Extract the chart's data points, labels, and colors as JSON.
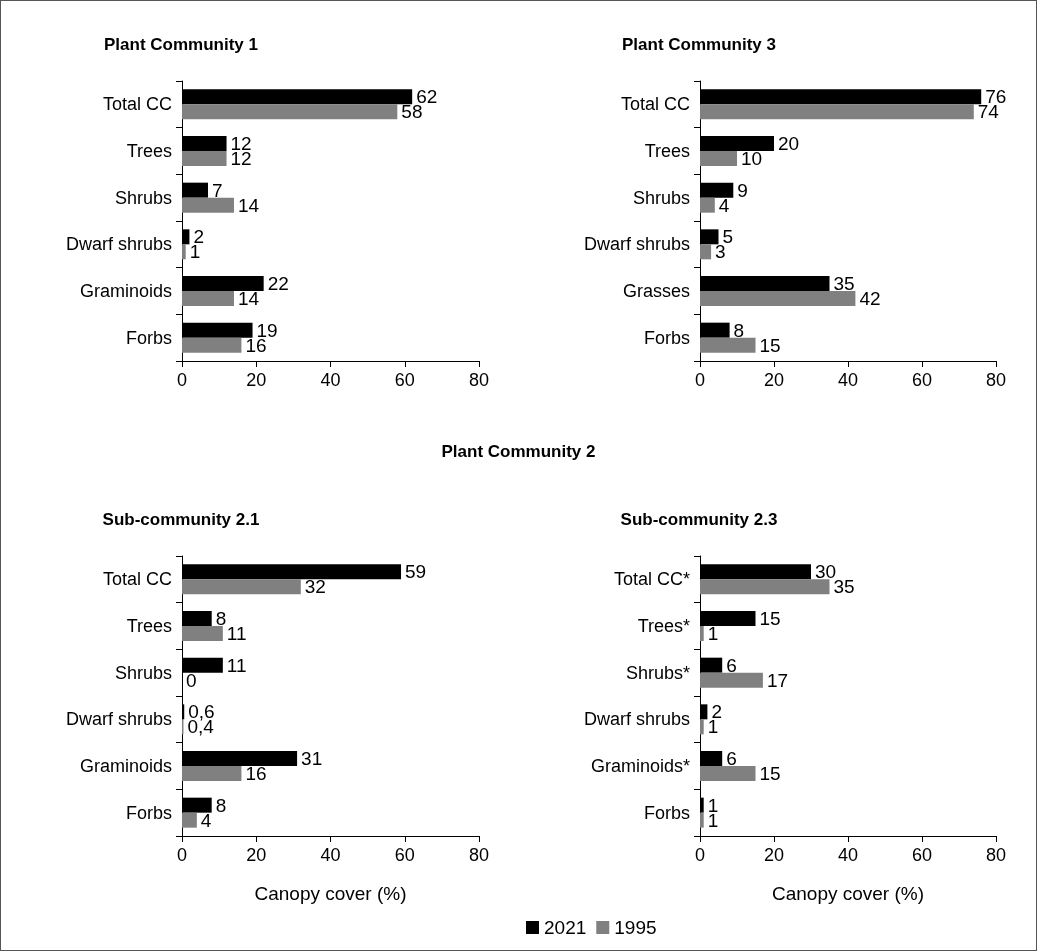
{
  "chart_data": [
    {
      "type": "bar",
      "orientation": "horizontal",
      "title": "Plant Community 1",
      "categories": [
        "Total CC",
        "Trees",
        "Shrubs",
        "Dwarf shrubs",
        "Graminoids",
        "Forbs"
      ],
      "series": [
        {
          "color": "#000000",
          "values": [
            62,
            12,
            7,
            2,
            22,
            19
          ]
        },
        {
          "color": "#808080",
          "values": [
            58,
            12,
            14,
            1,
            14,
            16
          ]
        }
      ],
      "xlim": [
        0,
        80
      ],
      "xticks": [
        0,
        20,
        40,
        60,
        80
      ],
      "data_labels": true
    },
    {
      "type": "bar",
      "orientation": "horizontal",
      "title": "Plant Community 3",
      "categories": [
        "Total CC",
        "Trees",
        "Shrubs",
        "Dwarf shrubs",
        "Grasses",
        "Forbs"
      ],
      "series": [
        {
          "color": "#000000",
          "values": [
            76,
            20,
            9,
            5,
            35,
            8
          ]
        },
        {
          "color": "#808080",
          "values": [
            74,
            10,
            4,
            3,
            42,
            15
          ]
        }
      ],
      "xlim": [
        0,
        80
      ],
      "xticks": [
        0,
        20,
        40,
        60,
        80
      ],
      "data_labels": true
    },
    {
      "type": "other",
      "title": "Plant Community 2"
    },
    {
      "type": "bar",
      "orientation": "horizontal",
      "title": "Sub-community 2.1",
      "xlabel": "Canopy cover (%)",
      "categories": [
        "Total CC",
        "Trees",
        "Shrubs",
        "Dwarf shrubs",
        "Graminoids",
        "Forbs"
      ],
      "series": [
        {
          "color": "#000000",
          "values": [
            59,
            8,
            11,
            0.6,
            31,
            8
          ],
          "value_labels": [
            "59",
            "8",
            "11",
            "0,6",
            "31",
            "8"
          ]
        },
        {
          "color": "#808080",
          "values": [
            32,
            11,
            0,
            0.4,
            16,
            4
          ],
          "value_labels": [
            "32",
            "11",
            "0",
            "0,4",
            "16",
            "4"
          ]
        }
      ],
      "xlim": [
        0,
        80
      ],
      "xticks": [
        0,
        20,
        40,
        60,
        80
      ]
    },
    {
      "type": "bar",
      "orientation": "horizontal",
      "title": "Sub-community 2.3",
      "xlabel": "Canopy cover (%)",
      "categories": [
        "Total CC*",
        "Trees*",
        "Shrubs*",
        "Dwarf shrubs",
        "Graminoids*",
        "Forbs"
      ],
      "series": [
        {
          "name": "2021",
          "color": "#000000",
          "values": [
            30,
            15,
            6,
            2,
            6,
            1
          ]
        },
        {
          "name": "1995",
          "color": "#808080",
          "values": [
            35,
            1,
            17,
            1,
            15,
            1
          ]
        }
      ],
      "xlim": [
        0,
        80
      ],
      "xticks": [
        0,
        20,
        40,
        60,
        80
      ],
      "data_labels": true,
      "legend": "bottom"
    }
  ]
}
